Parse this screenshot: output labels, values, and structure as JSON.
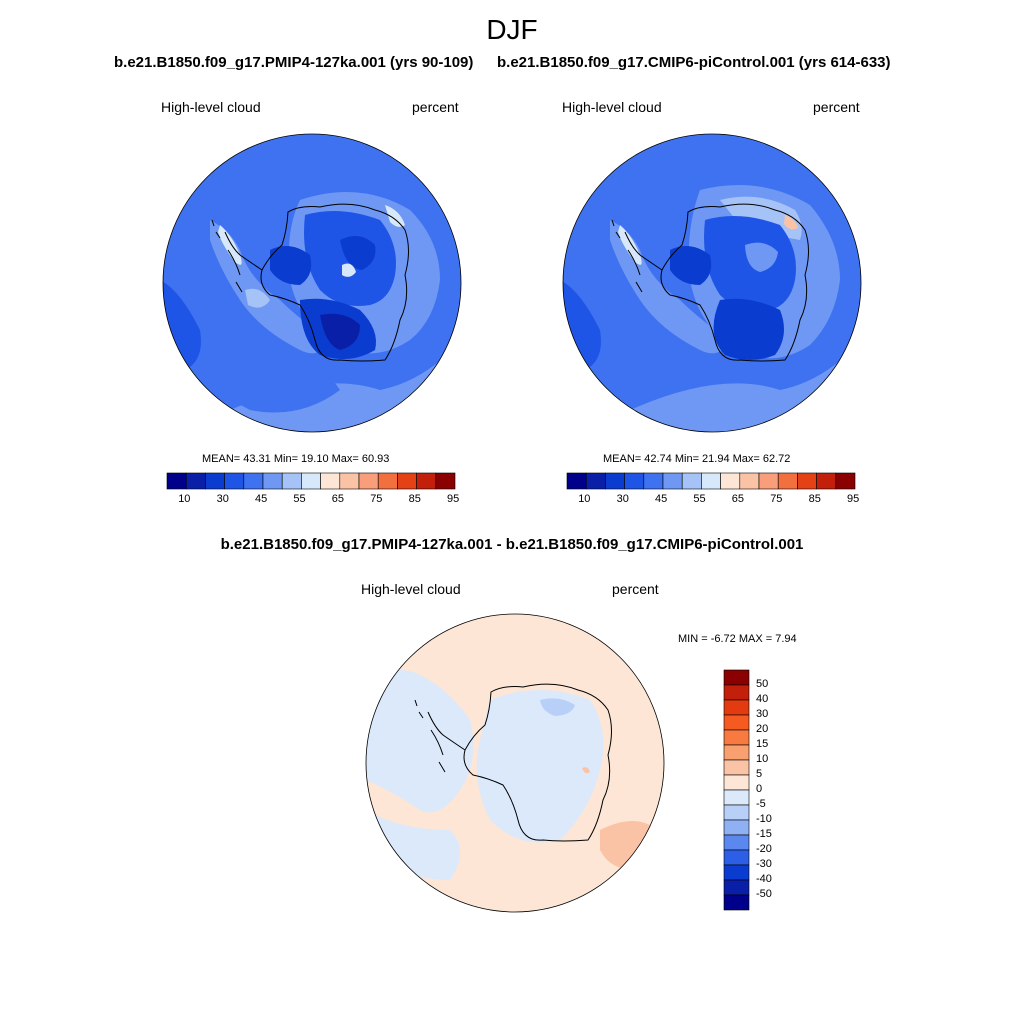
{
  "figure": {
    "title": "DJF",
    "panels": [
      {
        "run_title": "b.e21.B1850.f09_g17.PMIP4-127ka.001 (yrs 90-109)",
        "variable": "High-level cloud",
        "units": "percent",
        "stats": "MEAN=  43.31  Min=  19.10  Max=  60.93"
      },
      {
        "run_title": "b.e21.B1850.f09_g17.CMIP6-piControl.001 (yrs 614-633)",
        "variable": "High-level cloud",
        "units": "percent",
        "stats": "MEAN=  42.74  Min=  21.94  Max=  62.72"
      }
    ],
    "difference": {
      "title": "b.e21.B1850.f09_g17.PMIP4-127ka.001 - b.e21.B1850.f09_g17.CMIP6-piControl.001",
      "variable": "High-level cloud",
      "units": "percent",
      "stats": "MIN =  -6.72 MAX =   7.94"
    },
    "colorbar_abs": {
      "ticks": [
        "10",
        "30",
        "45",
        "55",
        "65",
        "75",
        "85",
        "95"
      ],
      "colors": [
        "#00008b",
        "#0a1fa8",
        "#0b3cd0",
        "#1f55e6",
        "#3f72f0",
        "#6e98f4",
        "#a6c3f7",
        "#d8e8fb",
        "#fde6d6",
        "#fbc3a6",
        "#f89e7a",
        "#f2703f",
        "#e44117",
        "#c3200b",
        "#8b0000"
      ]
    },
    "colorbar_diff": {
      "ticks": [
        "50",
        "40",
        "30",
        "20",
        "15",
        "10",
        "5",
        "0",
        "-5",
        "-10",
        "-15",
        "-20",
        "-30",
        "-40",
        "-50"
      ],
      "colors": [
        "#8b0000",
        "#c3200b",
        "#e43a10",
        "#f55a20",
        "#f87a40",
        "#f9a070",
        "#fbc3a6",
        "#fde6d6",
        "#dbe9fb",
        "#b8d0f8",
        "#8fb1f4",
        "#5a88ee",
        "#2c5fe6",
        "#0b3cd0",
        "#0a1fa8",
        "#00008b"
      ]
    }
  }
}
